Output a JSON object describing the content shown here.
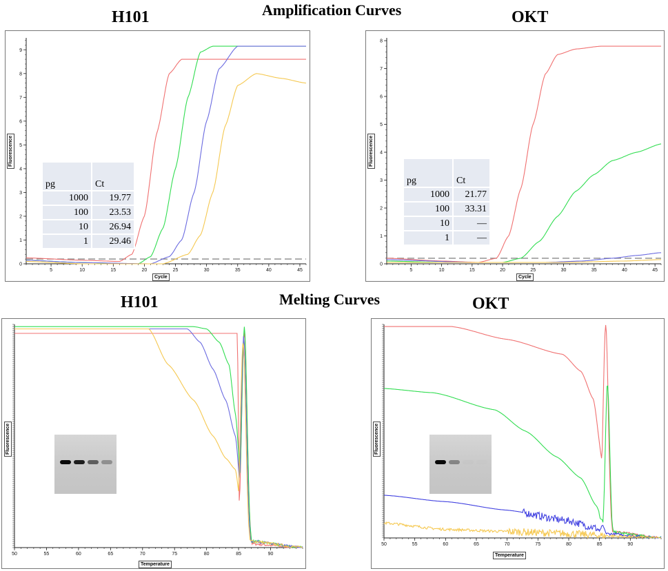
{
  "headers": {
    "amplification": "Amplification  Curves",
    "melting": "Melting Curves",
    "h101_top": "H101",
    "okt_top": "OKT",
    "h101_bottom": "H101",
    "okt_bottom": "OKT"
  },
  "axis_labels": {
    "fluorescence": "Fluorescence",
    "cycle": "Cycle",
    "temperature": "Temperature"
  },
  "tables": {
    "h101": {
      "col1": "pg",
      "col2": "Ct",
      "rows": [
        [
          "1000",
          "19.77"
        ],
        [
          "100",
          "23.53"
        ],
        [
          "10",
          "26.94"
        ],
        [
          "1",
          "29.46"
        ]
      ]
    },
    "okt": {
      "col1": "pg",
      "col2": "Ct",
      "rows": [
        [
          "1000",
          "21.77"
        ],
        [
          "100",
          "33.31"
        ],
        [
          "10",
          "—"
        ],
        [
          "1",
          "—"
        ]
      ]
    }
  },
  "chart_data": [
    {
      "name": "h101-amplification",
      "type": "line",
      "title": "H101",
      "xlabel": "Cycle",
      "ylabel": "Fluorescence",
      "xlim": [
        1,
        46
      ],
      "ylim": [
        0,
        9.5
      ],
      "xticks": [
        5,
        10,
        15,
        20,
        25,
        30,
        35,
        40,
        45
      ],
      "yticks": [
        0,
        1,
        2,
        3,
        4,
        5,
        6,
        7,
        8,
        9
      ],
      "threshold": 0.2,
      "series": [
        {
          "name": "1000 pg",
          "color": "#f07070",
          "ct": 19.77,
          "points": [
            [
              1,
              0.25
            ],
            [
              10,
              0.15
            ],
            [
              16,
              0.1
            ],
            [
              18,
              0.4
            ],
            [
              20,
              2.0
            ],
            [
              22,
              5.5
            ],
            [
              24,
              8.0
            ],
            [
              26,
              8.6
            ],
            [
              46,
              8.6
            ]
          ]
        },
        {
          "name": "100 pg",
          "color": "#30dd50",
          "ct": 23.53,
          "points": [
            [
              1,
              0.15
            ],
            [
              10,
              0.05
            ],
            [
              19,
              0.0
            ],
            [
              21,
              0.3
            ],
            [
              23,
              1.5
            ],
            [
              25,
              4.0
            ],
            [
              27,
              7.0
            ],
            [
              29,
              8.9
            ],
            [
              31,
              9.15
            ],
            [
              46,
              9.15
            ]
          ]
        },
        {
          "name": "10 pg",
          "color": "#6a6ae0",
          "ct": 26.94,
          "points": [
            [
              1,
              0.15
            ],
            [
              10,
              0.05
            ],
            [
              21,
              0.0
            ],
            [
              24,
              0.3
            ],
            [
              26,
              1.0
            ],
            [
              28,
              3.0
            ],
            [
              30,
              6.0
            ],
            [
              32,
              8.2
            ],
            [
              35,
              9.15
            ],
            [
              46,
              9.15
            ]
          ]
        },
        {
          "name": "1 pg",
          "color": "#f5c850",
          "ct": 29.46,
          "points": [
            [
              1,
              0.1
            ],
            [
              10,
              0.0
            ],
            [
              23,
              0.0
            ],
            [
              27,
              0.4
            ],
            [
              29,
              1.2
            ],
            [
              31,
              3.0
            ],
            [
              33,
              5.8
            ],
            [
              35,
              7.5
            ],
            [
              38,
              8.0
            ],
            [
              42,
              7.8
            ],
            [
              46,
              7.6
            ]
          ]
        }
      ]
    },
    {
      "name": "okt-amplification",
      "type": "line",
      "title": "OKT",
      "xlabel": "Cycle",
      "ylabel": "Fluorescence",
      "xlim": [
        1,
        46
      ],
      "ylim": [
        0,
        8.1
      ],
      "xticks": [
        5,
        10,
        15,
        20,
        25,
        30,
        35,
        40,
        45
      ],
      "yticks": [
        0,
        1,
        2,
        3,
        4,
        5,
        6,
        7,
        8
      ],
      "threshold": 0.2,
      "series": [
        {
          "name": "1000 pg",
          "color": "#f07070",
          "ct": 21.77,
          "points": [
            [
              1,
              0.2
            ],
            [
              10,
              0.1
            ],
            [
              16,
              0.05
            ],
            [
              19,
              0.2
            ],
            [
              21,
              1.0
            ],
            [
              23,
              2.7
            ],
            [
              25,
              5.0
            ],
            [
              27,
              6.8
            ],
            [
              29,
              7.5
            ],
            [
              32,
              7.7
            ],
            [
              36,
              7.8
            ],
            [
              46,
              7.8
            ]
          ]
        },
        {
          "name": "100 pg",
          "color": "#30dd50",
          "ct": 33.31,
          "points": [
            [
              1,
              0.1
            ],
            [
              10,
              0.05
            ],
            [
              20,
              0.05
            ],
            [
              23,
              0.2
            ],
            [
              26,
              0.8
            ],
            [
              29,
              1.7
            ],
            [
              32,
              2.6
            ],
            [
              35,
              3.2
            ],
            [
              38,
              3.7
            ],
            [
              42,
              4.0
            ],
            [
              46,
              4.3
            ]
          ]
        },
        {
          "name": "10 pg",
          "color": "#6a6ae0",
          "points": [
            [
              1,
              0.15
            ],
            [
              15,
              0.05
            ],
            [
              27,
              0.05
            ],
            [
              33,
              0.1
            ],
            [
              38,
              0.2
            ],
            [
              42,
              0.3
            ],
            [
              46,
              0.4
            ]
          ]
        },
        {
          "name": "1 pg",
          "color": "#f5c850",
          "points": [
            [
              1,
              0.05
            ],
            [
              30,
              0.05
            ],
            [
              40,
              0.1
            ],
            [
              46,
              0.15
            ]
          ]
        }
      ]
    },
    {
      "name": "h101-melting",
      "type": "line",
      "title": "H101",
      "xlabel": "Temperature",
      "ylabel": "Fluorescence",
      "xlim": [
        50,
        95
      ],
      "ylim": [
        0,
        100
      ],
      "xticks": [
        50,
        55,
        60,
        65,
        70,
        75,
        80,
        85,
        90
      ],
      "series": [
        {
          "name": "1000 pg",
          "color": "#f07070",
          "points": [
            [
              50,
              96
            ],
            [
              84,
              96
            ],
            [
              84.8,
              96
            ],
            [
              85.2,
              2
            ],
            [
              95,
              0
            ]
          ],
          "peak": {
            "center": 85.9,
            "height": 96,
            "width": 0.6
          }
        },
        {
          "name": "100 pg",
          "color": "#30dd50",
          "points": [
            [
              50,
              99
            ],
            [
              78,
              99
            ],
            [
              80,
              98
            ],
            [
              82,
              92
            ],
            [
              83.5,
              82
            ],
            [
              84.5,
              60
            ],
            [
              85.5,
              25
            ],
            [
              86.5,
              3
            ],
            [
              95,
              0
            ]
          ],
          "peak": {
            "center": 85.9,
            "height": 99,
            "width": 0.6
          }
        },
        {
          "name": "10 pg",
          "color": "#6a6ae0",
          "points": [
            [
              50,
              98
            ],
            [
              77,
              98
            ],
            [
              79,
              92
            ],
            [
              81,
              80
            ],
            [
              83,
              66
            ],
            [
              84.5,
              50
            ],
            [
              85.5,
              20
            ],
            [
              86.5,
              3
            ],
            [
              95,
              0
            ]
          ],
          "peak": {
            "center": 85.8,
            "height": 94,
            "width": 0.6
          }
        },
        {
          "name": "1 pg",
          "color": "#f5c850",
          "points": [
            [
              50,
              98
            ],
            [
              71,
              98
            ],
            [
              74,
              82
            ],
            [
              78,
              66
            ],
            [
              81,
              50
            ],
            [
              83,
              40
            ],
            [
              84.5,
              35
            ],
            [
              85.5,
              15
            ],
            [
              86.5,
              3
            ],
            [
              95,
              0
            ]
          ],
          "peak": {
            "center": 85.7,
            "height": 92,
            "width": 0.6
          }
        }
      ]
    },
    {
      "name": "okt-melting",
      "type": "line",
      "title": "OKT",
      "xlabel": "Temperature",
      "ylabel": "Fluorescence",
      "xlim": [
        50,
        95
      ],
      "ylim": [
        0,
        100
      ],
      "xticks": [
        50,
        55,
        60,
        65,
        70,
        75,
        80,
        85,
        90
      ],
      "series": [
        {
          "name": "1000 pg",
          "color": "#f07070",
          "points": [
            [
              50,
              99
            ],
            [
              61,
              99
            ],
            [
              70,
              93
            ],
            [
              79,
              86
            ],
            [
              82,
              78
            ],
            [
              84,
              65
            ],
            [
              85.5,
              35
            ],
            [
              87,
              3
            ],
            [
              95,
              0
            ]
          ],
          "peak": {
            "center": 86.0,
            "height": 100,
            "width": 0.6
          }
        },
        {
          "name": "100 pg",
          "color": "#30dd50",
          "points": [
            [
              50,
              70
            ],
            [
              58,
              68
            ],
            [
              68,
              60
            ],
            [
              73,
              50
            ],
            [
              78,
              38
            ],
            [
              82,
              28
            ],
            [
              84.5,
              15
            ],
            [
              86,
              3
            ],
            [
              95,
              0
            ]
          ],
          "peak": {
            "center": 86.3,
            "height": 72,
            "width": 0.5
          }
        },
        {
          "name": "10 pg",
          "color": "#4040e0",
          "points": [
            [
              50,
              20
            ],
            [
              60,
              17
            ],
            [
              70,
              13
            ],
            [
              80,
              8
            ],
            [
              84,
              5
            ],
            [
              86,
              2
            ],
            [
              95,
              0
            ]
          ],
          "peak": {
            "center": 85.5,
            "height": 5,
            "width": 0.6
          }
        },
        {
          "name": "1 pg",
          "color": "#f5c850",
          "points": [
            [
              50,
              7
            ],
            [
              60,
              4
            ],
            [
              70,
              3
            ],
            [
              80,
              2
            ],
            [
              86,
              1
            ],
            [
              95,
              0
            ]
          ]
        }
      ]
    }
  ],
  "gels": [
    {
      "name": "h101-gel",
      "bands": [
        1.0,
        0.95,
        0.75,
        0.55
      ]
    },
    {
      "name": "okt-gel",
      "bands": [
        1.0,
        0.6,
        0.1,
        0.05
      ]
    }
  ]
}
